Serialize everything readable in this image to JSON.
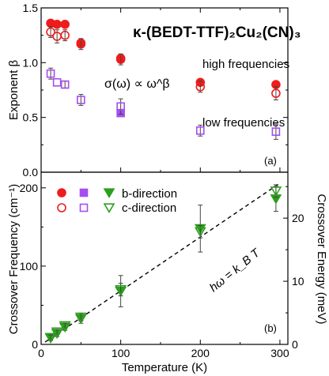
{
  "chart_data": [
    {
      "type": "scatter",
      "panel_label": "(a)",
      "title": "κ-(BEDT-TTF)₂Cu₂(CN)₃",
      "xlabel": "",
      "ylabel": "Exponent β",
      "xlim": [
        0,
        310
      ],
      "ylim": [
        0,
        1.5
      ],
      "yticks": [
        "0.0",
        "0.5",
        "1.0",
        "1.5"
      ],
      "grid": false,
      "annotations": [
        "σ(ω) ∝ ω^β",
        "high frequencies",
        "low frequencies"
      ],
      "series": [
        {
          "name": "high frequencies, b-direction",
          "marker": "filled circle",
          "color": "#ee1c1c",
          "points": [
            [
              12,
              1.36
            ],
            [
              20,
              1.35
            ],
            [
              30,
              1.35
            ],
            [
              50,
              1.18
            ],
            [
              100,
              1.04
            ],
            [
              200,
              0.82
            ],
            [
              295,
              0.8
            ]
          ]
        },
        {
          "name": "high frequencies, c-direction",
          "marker": "open circle",
          "color": "#ee1c1c",
          "points": [
            [
              12,
              1.28
            ],
            [
              20,
              1.24
            ],
            [
              30,
              1.25
            ],
            [
              50,
              1.17
            ],
            [
              100,
              1.03
            ],
            [
              200,
              0.78
            ],
            [
              295,
              0.72
            ]
          ],
          "errors": [
            0.05,
            0.06,
            0.05,
            0.05,
            0.05,
            0.05,
            0.06
          ]
        },
        {
          "name": "low frequencies, b-direction",
          "marker": "filled square",
          "color": "#a64cf0",
          "points": [
            [
              100,
              0.54
            ]
          ]
        },
        {
          "name": "low frequencies, c-direction",
          "marker": "open square",
          "color": "#a64cf0",
          "points": [
            [
              12,
              0.9
            ],
            [
              20,
              0.82
            ],
            [
              30,
              0.8
            ],
            [
              50,
              0.66
            ],
            [
              100,
              0.6
            ],
            [
              200,
              0.38
            ],
            [
              295,
              0.37
            ]
          ],
          "errors": [
            0.05,
            0.0,
            0.03,
            0.05,
            0.07,
            0.05,
            0.07
          ]
        }
      ]
    },
    {
      "type": "scatter",
      "panel_label": "(b)",
      "xlabel": "Temperature (K)",
      "ylabel": "Crossover Frequency (cm⁻¹)",
      "ylabel_right": "Crossover Energy (meV)",
      "xlim": [
        0,
        310
      ],
      "ylim": [
        0,
        220
      ],
      "xticks": [
        "0",
        "100",
        "200",
        "300"
      ],
      "yticks": [
        "0",
        "100",
        "200"
      ],
      "yticks_right": [
        "0",
        "10",
        "20"
      ],
      "grid": false,
      "legend_position": "top-left",
      "legend": {
        "row1_label": "b-direction",
        "row2_label": "c-direction"
      },
      "fit_label": "hω = k_B T",
      "fit_line": [
        [
          5,
          3
        ],
        [
          300,
          206
        ]
      ],
      "series": [
        {
          "name": "b-direction",
          "marker": "filled triangle down",
          "color": "#2e9e1f",
          "points": [
            [
              12,
              8
            ],
            [
              20,
              14
            ],
            [
              30,
              22
            ],
            [
              50,
              33
            ],
            [
              100,
              68
            ],
            [
              200,
              148
            ],
            [
              295,
              186
            ]
          ],
          "errors": [
            3,
            4,
            4,
            6,
            20,
            30,
            16
          ]
        },
        {
          "name": "c-direction",
          "marker": "open triangle down",
          "color": "#2e9e1f",
          "points": [
            [
              12,
              9
            ],
            [
              20,
              16
            ],
            [
              30,
              24
            ],
            [
              50,
              35
            ],
            [
              100,
              70
            ],
            [
              200,
              144
            ],
            [
              295,
              196
            ]
          ],
          "errors": [
            3,
            3,
            3,
            5,
            8,
            8,
            8
          ]
        }
      ]
    }
  ]
}
